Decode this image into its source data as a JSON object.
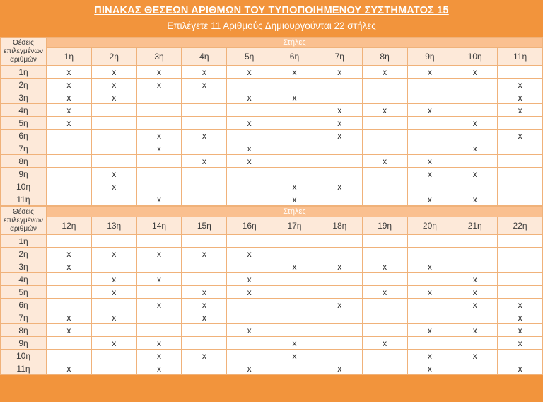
{
  "title": "ΠΙΝΑΚΑΣ ΘΕΣΕΩΝ ΑΡΙΘΜΩΝ ΤΟΥ ΤΥΠΟΠΟΙΗΜΕΝΟΥ ΣΥΣΤΗΜΑΤΟΣ 15",
  "subtitle": "Επιλέγετε 11 Αριθμούς Δημιουργούνται 22 στήλες",
  "row_header_label": "Θέσεις επιλεγμένων αριθμών",
  "columns_band_label": "Στήλες",
  "mark": "x",
  "colors": {
    "orange": "#F2943C",
    "band": "#FAC090",
    "peach": "#FDE9D9",
    "border": "#F0B27A",
    "header_text": "#3C3C3C",
    "mark_text": "#2E2E2E",
    "title_text": "#FFFFFF"
  },
  "sections": [
    {
      "column_headers": [
        "1η",
        "2η",
        "3η",
        "4η",
        "5η",
        "6η",
        "7η",
        "8η",
        "9η",
        "10η",
        "11η"
      ],
      "rows": [
        {
          "label": "1η",
          "marks": [
            1,
            1,
            1,
            1,
            1,
            1,
            1,
            1,
            1,
            1,
            0
          ]
        },
        {
          "label": "2η",
          "marks": [
            1,
            1,
            1,
            1,
            0,
            0,
            0,
            0,
            0,
            0,
            1
          ]
        },
        {
          "label": "3η",
          "marks": [
            1,
            1,
            0,
            0,
            1,
            1,
            0,
            0,
            0,
            0,
            1
          ]
        },
        {
          "label": "4η",
          "marks": [
            1,
            0,
            0,
            0,
            0,
            0,
            1,
            1,
            1,
            0,
            1
          ]
        },
        {
          "label": "5η",
          "marks": [
            1,
            0,
            0,
            0,
            1,
            0,
            1,
            0,
            0,
            1,
            0
          ]
        },
        {
          "label": "6η",
          "marks": [
            0,
            0,
            1,
            1,
            0,
            0,
            1,
            0,
            0,
            0,
            1
          ]
        },
        {
          "label": "7η",
          "marks": [
            0,
            0,
            1,
            0,
            1,
            0,
            0,
            0,
            0,
            1,
            0
          ]
        },
        {
          "label": "8η",
          "marks": [
            0,
            0,
            0,
            1,
            1,
            0,
            0,
            1,
            1,
            0,
            0
          ]
        },
        {
          "label": "9η",
          "marks": [
            0,
            1,
            0,
            0,
            0,
            0,
            0,
            0,
            1,
            1,
            0
          ]
        },
        {
          "label": "10η",
          "marks": [
            0,
            1,
            0,
            0,
            0,
            1,
            1,
            0,
            0,
            0,
            0
          ]
        },
        {
          "label": "11η",
          "marks": [
            0,
            0,
            1,
            0,
            0,
            1,
            0,
            0,
            1,
            1,
            0
          ]
        }
      ]
    },
    {
      "column_headers": [
        "12η",
        "13η",
        "14η",
        "15η",
        "16η",
        "17η",
        "18η",
        "19η",
        "20η",
        "21η",
        "22η"
      ],
      "rows": [
        {
          "label": "1η",
          "marks": [
            0,
            0,
            0,
            0,
            0,
            0,
            0,
            0,
            0,
            0,
            0
          ]
        },
        {
          "label": "2η",
          "marks": [
            1,
            1,
            1,
            1,
            1,
            0,
            0,
            0,
            0,
            0,
            0
          ]
        },
        {
          "label": "3η",
          "marks": [
            1,
            0,
            0,
            0,
            0,
            1,
            1,
            1,
            1,
            0,
            0
          ]
        },
        {
          "label": "4η",
          "marks": [
            0,
            1,
            1,
            0,
            1,
            0,
            0,
            0,
            0,
            1,
            0
          ]
        },
        {
          "label": "5η",
          "marks": [
            0,
            1,
            0,
            1,
            1,
            0,
            0,
            1,
            1,
            1,
            0
          ]
        },
        {
          "label": "6η",
          "marks": [
            0,
            0,
            1,
            1,
            0,
            0,
            1,
            0,
            0,
            1,
            1
          ]
        },
        {
          "label": "7η",
          "marks": [
            1,
            1,
            0,
            1,
            0,
            0,
            0,
            0,
            0,
            0,
            1
          ]
        },
        {
          "label": "8η",
          "marks": [
            1,
            0,
            0,
            0,
            1,
            0,
            0,
            0,
            1,
            1,
            1
          ]
        },
        {
          "label": "9η",
          "marks": [
            0,
            1,
            1,
            0,
            0,
            1,
            0,
            1,
            0,
            0,
            1
          ]
        },
        {
          "label": "10η",
          "marks": [
            0,
            0,
            1,
            1,
            0,
            1,
            0,
            0,
            1,
            1,
            0
          ]
        },
        {
          "label": "11η",
          "marks": [
            1,
            0,
            1,
            0,
            1,
            0,
            1,
            0,
            1,
            0,
            1
          ]
        }
      ]
    }
  ]
}
